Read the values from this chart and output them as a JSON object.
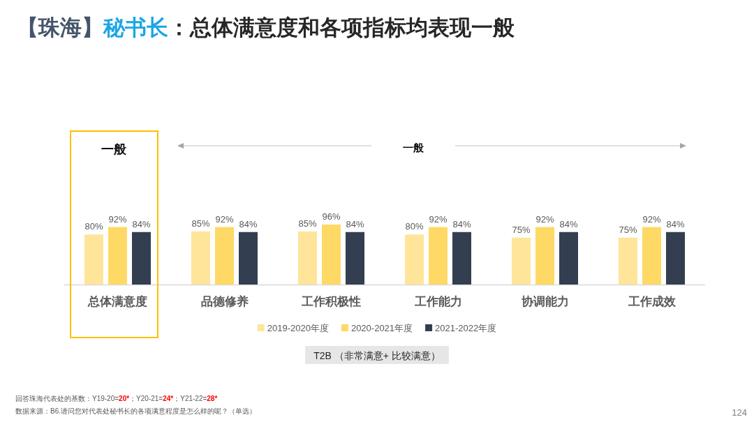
{
  "chart_data": {
    "type": "bar",
    "title": "【珠海】秘书长：总体满意度和各项指标均表现一般",
    "categories": [
      "总体满意度",
      "品德修养",
      "工作积极性",
      "工作能力",
      "协调能力",
      "工作成效"
    ],
    "series": [
      {
        "name": "2019-2020年度",
        "color": "#fee599",
        "values": [
          80,
          85,
          85,
          80,
          75,
          75
        ],
        "value_labels": [
          "80%",
          "85%",
          "85%",
          "80%",
          "75%",
          "75%"
        ]
      },
      {
        "name": "2020-2021年度",
        "color": "#ffd966",
        "values": [
          92,
          92,
          96,
          92,
          92,
          92
        ],
        "value_labels": [
          "92%",
          "92%",
          "96%",
          "92%",
          "92%",
          "92%"
        ]
      },
      {
        "name": "2021-2022年度",
        "color": "#333f50",
        "values": [
          84,
          84,
          84,
          84,
          84,
          84
        ],
        "value_labels": [
          "84%",
          "84%",
          "84%",
          "84%",
          "84%",
          "84%"
        ]
      }
    ],
    "legend": "bottom",
    "annotations": [
      "一般",
      "一般",
      "T2B （非常满意+ 比较满意）",
      "回答珠海代表处的基数：Y19-20=20*；Y20-21=24*；Y21-22=28*",
      "数据来源：B6.请问您对代表处秘书长的各项满意程度是怎么样的呢？（单选）",
      "124"
    ]
  }
}
